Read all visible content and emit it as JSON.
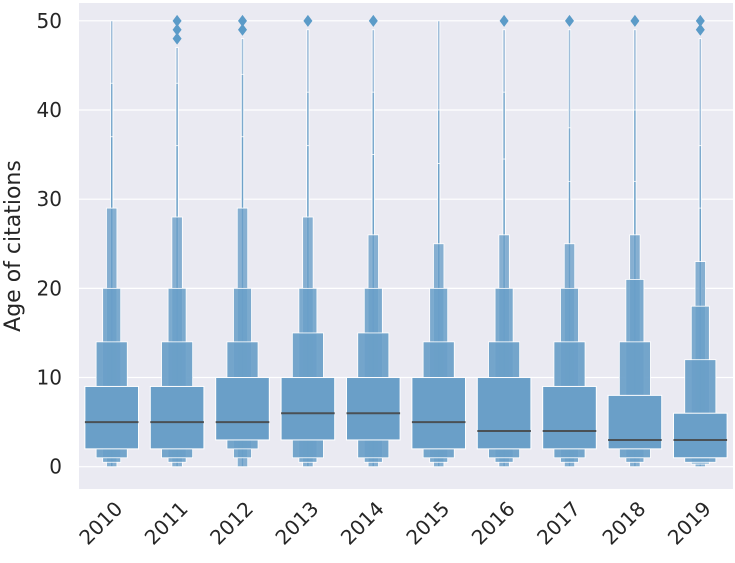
{
  "chart_data": {
    "type": "boxen",
    "title": "",
    "xlabel": "",
    "ylabel": "Age of citations",
    "ylim": [
      -2.5,
      52
    ],
    "yticks": [
      0,
      10,
      20,
      30,
      40,
      50
    ],
    "grid": true,
    "colors": {
      "box": "#6a9fc8",
      "median": "#4a5055",
      "outlier": "#5b9bc8",
      "background": "#eaeaf2",
      "grid": "#ffffff"
    },
    "categories": [
      "2010",
      "2011",
      "2012",
      "2013",
      "2014",
      "2015",
      "2016",
      "2017",
      "2018",
      "2019"
    ],
    "series": [
      {
        "category": "2010",
        "median": 5,
        "levels": [
          [
            2,
            9
          ],
          [
            1,
            14
          ],
          [
            0.5,
            20
          ],
          [
            0,
            29
          ],
          [
            0,
            37
          ],
          [
            0,
            43
          ],
          [
            0,
            50
          ]
        ],
        "outliers": []
      },
      {
        "category": "2011",
        "median": 5,
        "levels": [
          [
            2,
            9
          ],
          [
            1,
            14
          ],
          [
            0.5,
            20
          ],
          [
            0,
            28
          ],
          [
            0,
            36
          ],
          [
            0,
            43
          ],
          [
            0,
            47
          ]
        ],
        "outliers": [
          48,
          49,
          50
        ]
      },
      {
        "category": "2012",
        "median": 5,
        "levels": [
          [
            3,
            10
          ],
          [
            2,
            14
          ],
          [
            1,
            20
          ],
          [
            0,
            29
          ],
          [
            0,
            37
          ],
          [
            0,
            44
          ],
          [
            0,
            48
          ]
        ],
        "outliers": [
          49,
          50
        ]
      },
      {
        "category": "2013",
        "median": 6,
        "levels": [
          [
            3,
            10
          ],
          [
            1,
            15
          ],
          [
            0.5,
            20
          ],
          [
            0,
            28
          ],
          [
            0,
            36
          ],
          [
            0,
            42
          ],
          [
            0,
            49
          ]
        ],
        "outliers": [
          50
        ]
      },
      {
        "category": "2014",
        "median": 6,
        "levels": [
          [
            3,
            10
          ],
          [
            1,
            15
          ],
          [
            0.5,
            20
          ],
          [
            0,
            26
          ],
          [
            0,
            35
          ],
          [
            0,
            42
          ],
          [
            0,
            49
          ]
        ],
        "outliers": [
          50
        ]
      },
      {
        "category": "2015",
        "median": 5,
        "levels": [
          [
            2,
            10
          ],
          [
            1,
            14
          ],
          [
            0.5,
            20
          ],
          [
            0,
            25
          ],
          [
            0,
            34
          ],
          [
            0,
            40
          ],
          [
            0,
            50
          ]
        ],
        "outliers": []
      },
      {
        "category": "2016",
        "median": 4,
        "levels": [
          [
            2,
            10
          ],
          [
            1,
            14
          ],
          [
            0.5,
            20
          ],
          [
            0,
            26
          ],
          [
            0,
            34.5
          ],
          [
            0,
            42
          ],
          [
            0,
            49
          ]
        ],
        "outliers": [
          50
        ]
      },
      {
        "category": "2017",
        "median": 4,
        "levels": [
          [
            2,
            9
          ],
          [
            1,
            14
          ],
          [
            0.5,
            20
          ],
          [
            0,
            25
          ],
          [
            0,
            32
          ],
          [
            0,
            38
          ],
          [
            0,
            49
          ]
        ],
        "outliers": [
          50
        ]
      },
      {
        "category": "2018",
        "median": 3,
        "levels": [
          [
            2,
            8
          ],
          [
            1,
            14
          ],
          [
            0.5,
            21
          ],
          [
            0,
            26
          ],
          [
            0,
            32
          ],
          [
            0,
            40
          ],
          [
            0,
            49
          ]
        ],
        "outliers": [
          50
        ]
      },
      {
        "category": "2019",
        "median": 3,
        "levels": [
          [
            1,
            6
          ],
          [
            0.5,
            12
          ],
          [
            0.3,
            18
          ],
          [
            0,
            23
          ],
          [
            0,
            29
          ],
          [
            0,
            36
          ],
          [
            0,
            48
          ]
        ],
        "outliers": [
          49,
          50
        ]
      }
    ]
  }
}
